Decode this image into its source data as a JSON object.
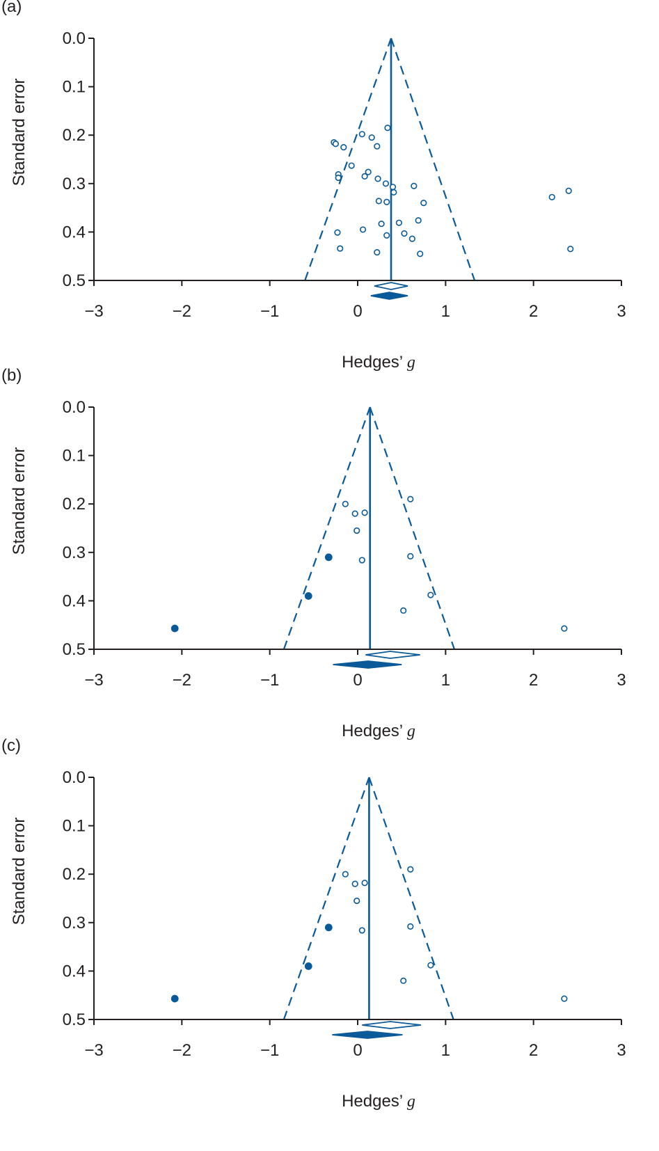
{
  "figure": {
    "colors": {
      "accent": "#0a5a99",
      "axis": "#231f20",
      "background": "#ffffff"
    },
    "x_title_prefix": "Hedges’ ",
    "x_title_italic": "g"
  },
  "chart_data": [
    {
      "panel_label": "(a)",
      "type": "scatter",
      "title": "",
      "xlabel": "Hedges’ g",
      "ylabel": "Standard error",
      "xlim": [
        -3,
        3
      ],
      "ylim": [
        0.5,
        0.0
      ],
      "y_inverted": true,
      "xticks": [
        -3,
        -2,
        -1,
        0,
        1,
        2,
        3
      ],
      "xtick_labels": [
        "−3",
        "−2",
        "−1",
        "0",
        "1",
        "2",
        "3"
      ],
      "yticks": [
        0.0,
        0.1,
        0.2,
        0.3,
        0.4,
        0.5
      ],
      "ytick_labels": [
        "0.0",
        "0.1",
        "0.2",
        "0.3",
        "0.4",
        "0.5"
      ],
      "grid": false,
      "pooled_effect": 0.38,
      "funnel": {
        "apex": [
          0.38,
          0.0
        ],
        "base_left": [
          -0.6,
          0.5
        ],
        "base_right": [
          1.33,
          0.5
        ]
      },
      "diamonds": [
        {
          "style": "open",
          "center": 0.38,
          "lower": 0.19,
          "upper": 0.57
        },
        {
          "style": "filled",
          "center": 0.36,
          "lower": 0.15,
          "upper": 0.57
        }
      ],
      "series": [
        {
          "style": "open",
          "points": [
            [
              0.34,
              0.185
            ],
            [
              0.05,
              0.198
            ],
            [
              0.16,
              0.205
            ],
            [
              -0.27,
              0.215
            ],
            [
              -0.25,
              0.218
            ],
            [
              -0.16,
              0.225
            ],
            [
              0.22,
              0.223
            ],
            [
              -0.07,
              0.263
            ],
            [
              0.12,
              0.276
            ],
            [
              0.08,
              0.285
            ],
            [
              -0.22,
              0.281
            ],
            [
              -0.22,
              0.288
            ],
            [
              0.23,
              0.29
            ],
            [
              0.32,
              0.3
            ],
            [
              0.4,
              0.307
            ],
            [
              0.64,
              0.305
            ],
            [
              0.41,
              0.318
            ],
            [
              2.4,
              0.315
            ],
            [
              2.21,
              0.328
            ],
            [
              0.24,
              0.336
            ],
            [
              0.33,
              0.338
            ],
            [
              0.75,
              0.34
            ],
            [
              0.47,
              0.381
            ],
            [
              0.27,
              0.383
            ],
            [
              0.69,
              0.376
            ],
            [
              0.06,
              0.395
            ],
            [
              0.53,
              0.403
            ],
            [
              -0.23,
              0.401
            ],
            [
              0.33,
              0.407
            ],
            [
              0.62,
              0.414
            ],
            [
              -0.2,
              0.434
            ],
            [
              0.22,
              0.442
            ],
            [
              0.71,
              0.445
            ],
            [
              2.42,
              0.435
            ]
          ]
        }
      ]
    },
    {
      "panel_label": "(b)",
      "type": "scatter",
      "title": "",
      "xlabel": "Hedges’ g",
      "ylabel": "Standard error",
      "xlim": [
        -3,
        3
      ],
      "ylim": [
        0.5,
        0.0
      ],
      "y_inverted": true,
      "xticks": [
        -3,
        -2,
        -1,
        0,
        1,
        2,
        3
      ],
      "xtick_labels": [
        "−3",
        "−2",
        "−1",
        "0",
        "1",
        "2",
        "3"
      ],
      "yticks": [
        0.0,
        0.1,
        0.2,
        0.3,
        0.4,
        0.5
      ],
      "ytick_labels": [
        "0.0",
        "0.1",
        "0.2",
        "0.3",
        "0.4",
        "0.5"
      ],
      "grid": false,
      "pooled_effect": 0.14,
      "funnel": {
        "apex": [
          0.14,
          0.0
        ],
        "base_left": [
          -0.84,
          0.5
        ],
        "base_right": [
          1.1,
          0.5
        ]
      },
      "diamonds": [
        {
          "style": "open",
          "center": 0.37,
          "lower": 0.09,
          "upper": 0.71
        },
        {
          "style": "filled",
          "center": 0.12,
          "lower": -0.28,
          "upper": 0.5
        }
      ],
      "series": [
        {
          "style": "open",
          "points": [
            [
              0.6,
              0.19
            ],
            [
              -0.14,
              0.2
            ],
            [
              -0.03,
              0.22
            ],
            [
              0.08,
              0.218
            ],
            [
              -0.01,
              0.255
            ],
            [
              0.6,
              0.308
            ],
            [
              0.05,
              0.316
            ],
            [
              0.83,
              0.388
            ],
            [
              0.52,
              0.42
            ],
            [
              2.35,
              0.457
            ]
          ]
        },
        {
          "style": "filled",
          "points": [
            [
              -0.33,
              0.31
            ],
            [
              -0.56,
              0.39
            ],
            [
              -2.08,
              0.457
            ]
          ]
        }
      ]
    },
    {
      "panel_label": "(c)",
      "type": "scatter",
      "title": "",
      "xlabel": "Hedges’ g",
      "ylabel": "Standard error",
      "xlim": [
        -3,
        3
      ],
      "ylim": [
        0.5,
        0.0
      ],
      "y_inverted": true,
      "xticks": [
        -3,
        -2,
        -1,
        0,
        1,
        2,
        3
      ],
      "xtick_labels": [
        "−3",
        "−2",
        "−1",
        "0",
        "1",
        "2",
        "3"
      ],
      "yticks": [
        0.0,
        0.1,
        0.2,
        0.3,
        0.4,
        0.5
      ],
      "ytick_labels": [
        "0.0",
        "0.1",
        "0.2",
        "0.3",
        "0.4",
        "0.5"
      ],
      "grid": false,
      "pooled_effect": 0.13,
      "funnel": {
        "apex": [
          0.13,
          0.0
        ],
        "base_left": [
          -0.84,
          0.5
        ],
        "base_right": [
          1.09,
          0.5
        ]
      },
      "diamonds": [
        {
          "style": "open",
          "center": 0.37,
          "lower": 0.05,
          "upper": 0.72
        },
        {
          "style": "filled",
          "center": 0.11,
          "lower": -0.29,
          "upper": 0.51
        }
      ],
      "series": [
        {
          "style": "open",
          "points": [
            [
              0.6,
              0.19
            ],
            [
              -0.14,
              0.2
            ],
            [
              -0.03,
              0.22
            ],
            [
              0.08,
              0.218
            ],
            [
              -0.01,
              0.255
            ],
            [
              0.6,
              0.308
            ],
            [
              0.05,
              0.316
            ],
            [
              0.83,
              0.388
            ],
            [
              0.52,
              0.42
            ],
            [
              2.35,
              0.457
            ]
          ]
        },
        {
          "style": "filled",
          "points": [
            [
              -0.33,
              0.31
            ],
            [
              -0.56,
              0.39
            ],
            [
              -2.08,
              0.457
            ]
          ]
        }
      ]
    }
  ]
}
